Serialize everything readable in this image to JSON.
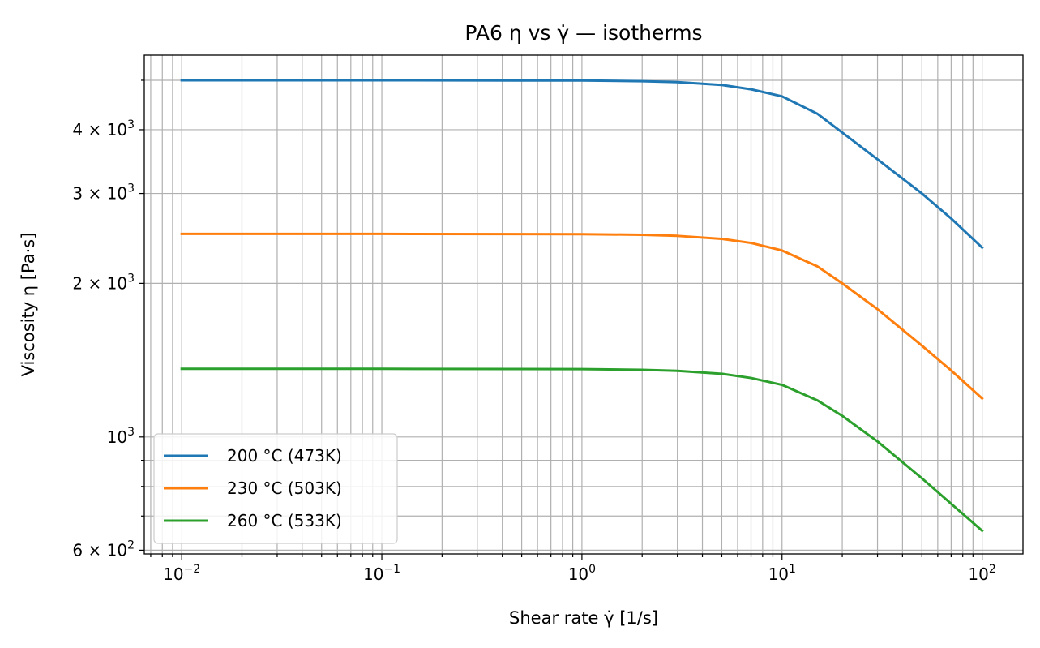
{
  "chart_data": {
    "type": "line",
    "title": "PA6 η vs γ̇ — isotherms",
    "xlabel": "Shear rate γ̇ [1/s]",
    "ylabel": "Viscosity η [Pa·s]",
    "xscale": "log",
    "yscale": "log",
    "xlim": [
      0.0065,
      160
    ],
    "ylim": [
      590,
      5600
    ],
    "grid": true,
    "legend_position": "lower-left",
    "x_ticks": [
      {
        "value": 0.01,
        "base": "10",
        "exp": "−2"
      },
      {
        "value": 0.1,
        "base": "10",
        "exp": "−1"
      },
      {
        "value": 1,
        "base": "10",
        "exp": "0"
      },
      {
        "value": 10,
        "base": "10",
        "exp": "1"
      },
      {
        "value": 100,
        "base": "10",
        "exp": "2"
      }
    ],
    "y_ticks": [
      {
        "value": 600,
        "mant": "6 × ",
        "base": "10",
        "exp": "2"
      },
      {
        "value": 1000,
        "mant": "",
        "base": "10",
        "exp": "3"
      },
      {
        "value": 2000,
        "mant": "2 × ",
        "base": "10",
        "exp": "3"
      },
      {
        "value": 3000,
        "mant": "3 × ",
        "base": "10",
        "exp": "3"
      },
      {
        "value": 4000,
        "mant": "4 × ",
        "base": "10",
        "exp": "3"
      }
    ],
    "y_minor_ticks": [
      700,
      800,
      900,
      5000
    ],
    "x": [
      0.01,
      0.1,
      1,
      2,
      3,
      5,
      7,
      10,
      15,
      20,
      30,
      50,
      70,
      100
    ],
    "series": [
      {
        "name": "200 °C (473K)",
        "color": "#1f77b4",
        "values": [
          5000,
          5000,
          4994,
          4980,
          4958,
          4895,
          4800,
          4650,
          4300,
          3950,
          3500,
          3000,
          2680,
          2350
        ]
      },
      {
        "name": "230 °C (503K)",
        "color": "#ff7f0e",
        "values": [
          2500,
          2500,
          2497,
          2490,
          2478,
          2445,
          2400,
          2320,
          2160,
          2000,
          1780,
          1510,
          1350,
          1190
        ]
      },
      {
        "name": "260 °C (533K)",
        "color": "#2ca02c",
        "values": [
          1360,
          1360,
          1358,
          1354,
          1348,
          1330,
          1305,
          1265,
          1180,
          1100,
          980,
          830,
          740,
          655
        ]
      }
    ]
  }
}
